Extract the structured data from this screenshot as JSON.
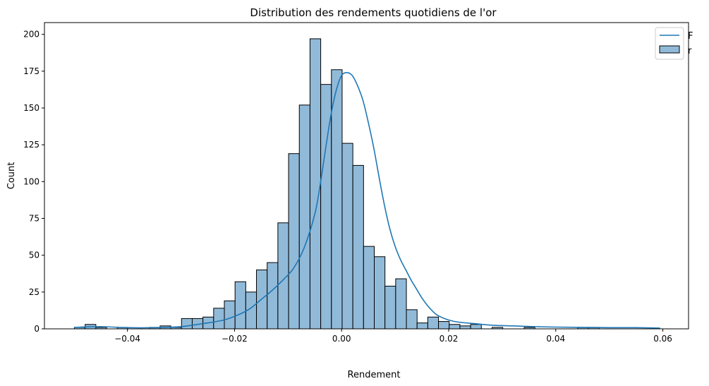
{
  "chart_data": {
    "type": "bar",
    "title": "Distribution des rendements quotidiens de l'or",
    "xlabel": "Rendement",
    "ylabel": "Count",
    "xlim": [
      -0.0555,
      0.0648
    ],
    "ylim": [
      0,
      208
    ],
    "xticks": [
      -0.04,
      -0.02,
      0.0,
      0.02,
      0.04,
      0.06
    ],
    "xtick_labels": [
      "−0.04",
      "−0.02",
      "0.00",
      "0.02",
      "0.04",
      "0.06"
    ],
    "yticks": [
      0,
      25,
      50,
      75,
      100,
      125,
      150,
      175,
      200
    ],
    "ytick_labels": [
      "0",
      "25",
      "50",
      "75",
      "100",
      "125",
      "150",
      "175",
      "200"
    ],
    "bin_start": -0.0499,
    "bin_width": 0.002,
    "counts": [
      1,
      3,
      1,
      0,
      1,
      0,
      0,
      1,
      2,
      1,
      7,
      7,
      8,
      14,
      19,
      32,
      25,
      40,
      45,
      72,
      119,
      152,
      197,
      166,
      176,
      126,
      111,
      56,
      49,
      29,
      34,
      13,
      4,
      8,
      5,
      3,
      2,
      3,
      0,
      1,
      0,
      0,
      1,
      0,
      0,
      0,
      0,
      1,
      1
    ],
    "kde_x": [
      -0.05,
      -0.045,
      -0.04,
      -0.035,
      -0.03,
      -0.026,
      -0.022,
      -0.019,
      -0.017,
      -0.015,
      -0.013,
      -0.011,
      -0.009,
      -0.007,
      -0.005,
      -0.004,
      -0.003,
      -0.002,
      -0.001,
      0.0,
      0.001,
      0.002,
      0.003,
      0.004,
      0.005,
      0.006,
      0.007,
      0.008,
      0.009,
      0.01,
      0.011,
      0.012,
      0.013,
      0.014,
      0.015,
      0.016,
      0.017,
      0.018,
      0.02,
      0.022,
      0.025,
      0.028,
      0.032,
      0.036,
      0.04,
      0.045,
      0.05,
      0.055,
      0.0595
    ],
    "kde_y": [
      1,
      1.5,
      0.8,
      0.8,
      1.5,
      3.5,
      6,
      10,
      14,
      20,
      26,
      33,
      41,
      55,
      78,
      98,
      122,
      145,
      162,
      172,
      174,
      172,
      165,
      155,
      140,
      123,
      103,
      84,
      68,
      56,
      47,
      40,
      33,
      27,
      21,
      16,
      12,
      9,
      6,
      4.5,
      3.5,
      2.5,
      2,
      1.5,
      1.2,
      1,
      0.8,
      0.8,
      0.5
    ],
    "legend": {
      "placement": "top-right",
      "line_label": "F",
      "bar_label": "r"
    },
    "colors": {
      "bar_fill": "#91bad9",
      "bar_edge": "#000000",
      "kde_line": "#1f77b4"
    }
  }
}
